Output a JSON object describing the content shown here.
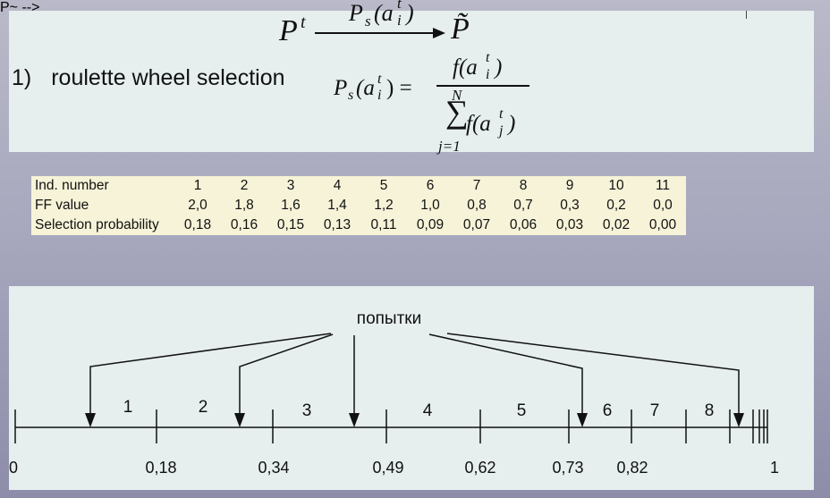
{
  "formula": {
    "mapping": {
      "left": "P",
      "left_sup": "t",
      "arrow_label": "P",
      "arrow_label_sub": "s",
      "arrow_label_arg": "(a",
      "arrow_label_arg_sub": "i",
      "arrow_label_arg_sup": "t",
      "arrow_label_close": ")",
      "right": "P̃"
    },
    "step_number": "1)",
    "step_text": "roulette wheel selection",
    "equation": {
      "lhs": "P",
      "lhs_sub": "s",
      "lhs_arg": "(a",
      "lhs_arg_sub": "i",
      "lhs_arg_sup": "t",
      "lhs_close": ") =",
      "numerator": "f(a",
      "numerator_sub": "i",
      "numerator_sup": "t",
      "numerator_close": ")",
      "sum_upper": "N",
      "sum_symbol": "∑",
      "sum_lower": "j=1",
      "denominator": "f(a",
      "denominator_sub": "j",
      "denominator_sup": "t",
      "denominator_close": ")"
    }
  },
  "table": {
    "rows": [
      {
        "header": "Ind. number",
        "values": [
          "1",
          "2",
          "3",
          "4",
          "5",
          "6",
          "7",
          "8",
          "9",
          "10",
          "11"
        ]
      },
      {
        "header": "FF value",
        "values": [
          "2,0",
          "1,8",
          "1,6",
          "1,4",
          "1,2",
          "1,0",
          "0,8",
          "0,7",
          "0,3",
          "0,2",
          "0,0"
        ]
      },
      {
        "header": "Selection probability",
        "values": [
          "0,18",
          "0,16",
          "0,15",
          "0,13",
          "0,11",
          "0,09",
          "0,07",
          "0,06",
          "0,03",
          "0,02",
          "0,00"
        ]
      }
    ]
  },
  "number_line": {
    "title": "попытки",
    "tick_labels": [
      "0",
      "0,18",
      "0,34",
      "0,49",
      "0,62",
      "0,73",
      "0,82",
      "1"
    ],
    "segment_labels": [
      "1",
      "2",
      "3",
      "4",
      "5",
      "6",
      "7",
      "8"
    ]
  },
  "colors": {
    "panel": "#e6eeee",
    "table_bg": "#f6f3d8",
    "ink": "#111111"
  }
}
